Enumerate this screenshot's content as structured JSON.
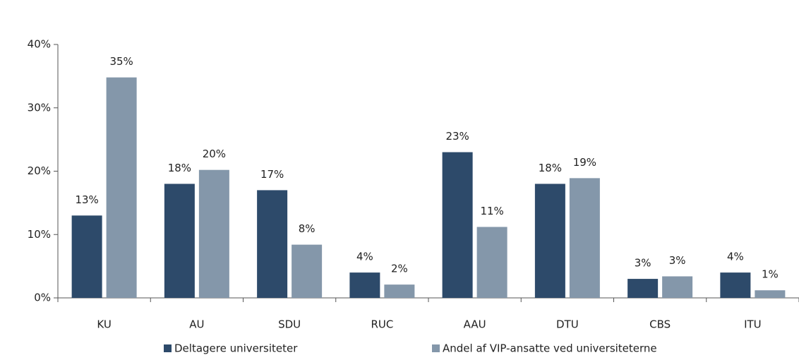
{
  "chart_data": {
    "type": "bar",
    "categories": [
      "KU",
      "AU",
      "SDU",
      "RUC",
      "AAU",
      "DTU",
      "CBS",
      "ITU"
    ],
    "series": [
      {
        "name": "Deltagere universiteter",
        "color": "#2d4a6a",
        "values": [
          13,
          18,
          17,
          4,
          23,
          18,
          3,
          4
        ],
        "value_labels": [
          "13%",
          "18%",
          "17%",
          "4%",
          "23%",
          "18%",
          "3%",
          "4%"
        ]
      },
      {
        "name": "Andel af VIP-ansatte ved universiteterne",
        "color": "#8497aa",
        "values": [
          34.8,
          20.2,
          8.4,
          2.1,
          11.2,
          18.9,
          3.4,
          1.2
        ],
        "value_labels": [
          "35%",
          "20%",
          "8%",
          "2%",
          "11%",
          "19%",
          "3%",
          "1%"
        ]
      }
    ],
    "ylim": [
      0,
      40
    ],
    "yticks": [
      {
        "value": 0,
        "label": "0%"
      },
      {
        "value": 10,
        "label": "10%"
      },
      {
        "value": 20,
        "label": "20%"
      },
      {
        "value": 30,
        "label": "30%"
      },
      {
        "value": 40,
        "label": "40%"
      }
    ],
    "legend": "bottom"
  }
}
